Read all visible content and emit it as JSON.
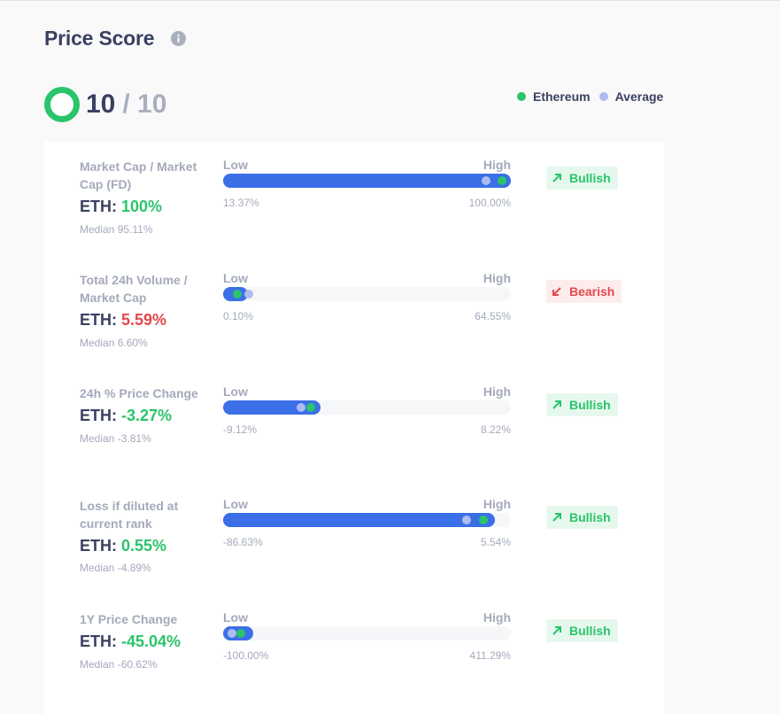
{
  "header": {
    "title": "Price Score"
  },
  "score": {
    "value": "10",
    "max": "/ 10"
  },
  "legend": [
    {
      "label": "Ethereum",
      "color": "#2ac46a"
    },
    {
      "label": "Average",
      "color": "#aebcf0"
    }
  ],
  "colors": {
    "bar": "#3b6fe8",
    "bullish": "#2ac46a",
    "bearish": "#e5484d"
  },
  "rows": [
    {
      "name": "Market Cap / Market Cap (FD)",
      "eth_prefix": "ETH:",
      "eth_value": "100%",
      "eth_color": "green",
      "median": "Median 95.11%",
      "low_label": "Low",
      "high_label": "High",
      "min": "13.37%",
      "max": "100.00%",
      "fill_fraction": 1.0,
      "avg_fraction": 0.915,
      "eth_fraction": 0.97,
      "sentiment": "Bullish",
      "sentiment_type": "bull"
    },
    {
      "name": "Total 24h Volume / Market Cap",
      "eth_prefix": "ETH:",
      "eth_value": "5.59%",
      "eth_color": "red",
      "median": "Median 6.60%",
      "low_label": "Low",
      "high_label": "High",
      "min": "0.10%",
      "max": "64.55%",
      "fill_fraction": 0.085,
      "avg_fraction": 0.088,
      "eth_fraction": 0.05,
      "sentiment": "Bearish",
      "sentiment_type": "bear"
    },
    {
      "name": "24h % Price Change",
      "eth_prefix": "ETH:",
      "eth_value": "-3.27%",
      "eth_color": "green",
      "median": "Median -3.81%",
      "low_label": "Low",
      "high_label": "High",
      "min": "-9.12%",
      "max": "8.22%",
      "fill_fraction": 0.337,
      "avg_fraction": 0.27,
      "eth_fraction": 0.305,
      "sentiment": "Bullish",
      "sentiment_type": "bull"
    },
    {
      "name": "Loss if diluted at current rank",
      "eth_prefix": "ETH:",
      "eth_value": "0.55%",
      "eth_color": "green",
      "median": "Median -4.89%",
      "low_label": "Low",
      "high_label": "High",
      "min": "-86.63%",
      "max": "5.54%",
      "fill_fraction": 0.945,
      "avg_fraction": 0.845,
      "eth_fraction": 0.905,
      "sentiment": "Bullish",
      "sentiment_type": "bull"
    },
    {
      "name": "1Y Price Change",
      "eth_prefix": "ETH:",
      "eth_value": "-45.04%",
      "eth_color": "green",
      "median": "Median -60.62%",
      "low_label": "Low",
      "high_label": "High",
      "min": "-100.00%",
      "max": "411.29%",
      "fill_fraction": 0.105,
      "avg_fraction": 0.03,
      "eth_fraction": 0.06,
      "sentiment": "Bullish",
      "sentiment_type": "bull"
    }
  ]
}
